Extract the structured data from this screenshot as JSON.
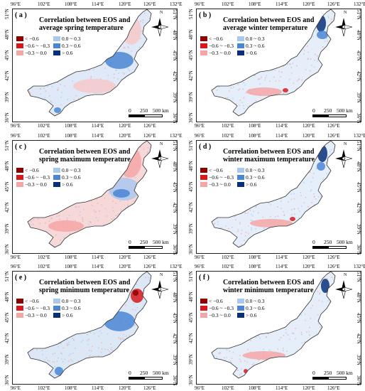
{
  "ticks": {
    "top": [
      "96°E",
      "102°E",
      "108°E",
      "114°E",
      "120°E",
      "126°E",
      "132°E"
    ],
    "bottom": [
      "96°E",
      "102°E",
      "108°E",
      "114°E",
      "120°E",
      "126°E"
    ],
    "left": [
      "36°N",
      "39°N",
      "42°N",
      "45°N",
      "48°N",
      "51°N"
    ],
    "right": [
      "36°N",
      "39°N",
      "42°N",
      "45°N",
      "48°N",
      "51°N"
    ]
  },
  "legend": {
    "items": [
      "< −0.6",
      "−0.6 ~ −0.3",
      "−0.3 ~ 0.0",
      "0.0 ~ 0.3",
      "0.3 ~ 0.6",
      "> 0.6"
    ],
    "colors": [
      "#8b0000",
      "#d7191c",
      "#f4a6a6",
      "#aac8ee",
      "#4a86d4",
      "#08307a"
    ]
  },
  "north_label": "N",
  "scale": {
    "labels": [
      "0",
      "250",
      "500 km"
    ]
  },
  "panels": [
    {
      "label": "( a )",
      "title_line1": "Correlation between EOS and",
      "title_line2": "average spring  temperature"
    },
    {
      "label": "( b )",
      "title_line1": "Correlation between EOS and",
      "title_line2": "average winter temperature"
    },
    {
      "label": "( c )",
      "title_line1": "Correlation between EOS and",
      "title_line2": "spring maximum temperature"
    },
    {
      "label": "( d )",
      "title_line1": "Correlation between EOS and",
      "title_line2": "winter maximum temperature"
    },
    {
      "label": "( e )",
      "title_line1": "Correlation between EOS and",
      "title_line2": "spring minimum temperature"
    },
    {
      "label": "( f )",
      "title_line1": "Correlation between EOS and",
      "title_line2": "winter minimum temperature"
    }
  ]
}
